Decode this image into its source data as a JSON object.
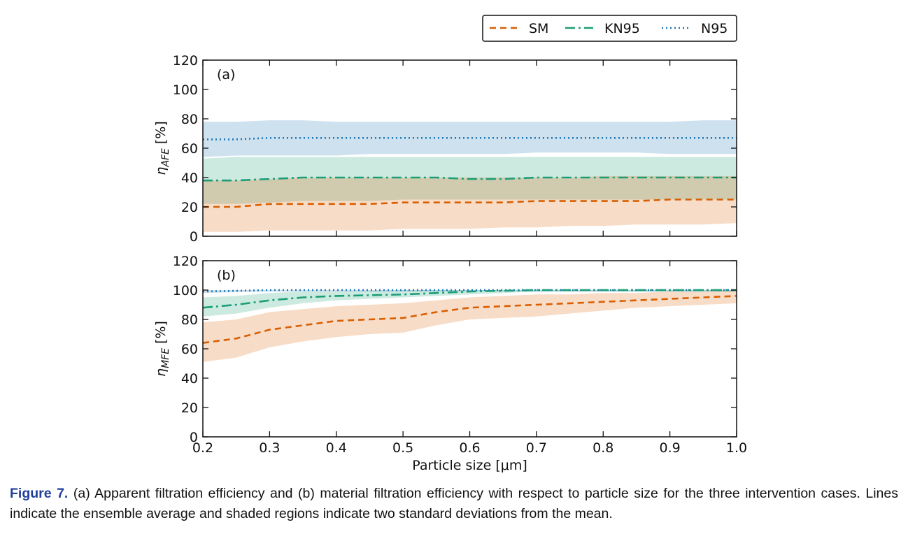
{
  "caption": {
    "label": "Figure 7.",
    "text": "(a) Apparent filtration efficiency and (b) material filtration efficiency with respect to particle size for the three intervention cases. Lines indicate the ensemble average and shaded regions indicate two standard deviations from the mean."
  },
  "colors": {
    "SM": "#d95f02",
    "KN95": "#1b9e77",
    "N95": "#1f77b4"
  },
  "chart_data": [
    {
      "type": "line",
      "panel_label": "(a)",
      "ylabel_symbol": "η",
      "ylabel_sub": "AFE",
      "ylabel_unit": "[%]",
      "xlabel": "",
      "xlim": [
        0.2,
        1.0
      ],
      "ylim": [
        0,
        120
      ],
      "xticks": [
        "0.2",
        "0.3",
        "0.4",
        "0.5",
        "0.6",
        "0.7",
        "0.8",
        "0.9",
        "1.0"
      ],
      "yticks": [
        "0",
        "20",
        "40",
        "60",
        "80",
        "100",
        "120"
      ],
      "x": [
        0.2,
        0.25,
        0.3,
        0.35,
        0.4,
        0.45,
        0.5,
        0.55,
        0.6,
        0.65,
        0.7,
        0.75,
        0.8,
        0.85,
        0.9,
        0.95,
        1.0
      ],
      "series": [
        {
          "name": "N95",
          "style": "dotted",
          "values": [
            66,
            66,
            67,
            67,
            67,
            67,
            67,
            67,
            67,
            67,
            67,
            67,
            67,
            67,
            67,
            67,
            67
          ],
          "upper": [
            78,
            78,
            79,
            79,
            78,
            78,
            78,
            78,
            78,
            78,
            78,
            78,
            78,
            78,
            78,
            79,
            79
          ],
          "lower": [
            54,
            55,
            55,
            55,
            55,
            56,
            56,
            56,
            56,
            56,
            57,
            57,
            57,
            57,
            56,
            56,
            56
          ]
        },
        {
          "name": "KN95",
          "style": "dashdot",
          "values": [
            38,
            38,
            39,
            40,
            40,
            40,
            40,
            40,
            39,
            39,
            40,
            40,
            40,
            40,
            40,
            40,
            40
          ],
          "upper": [
            53,
            54,
            54,
            54,
            54,
            54,
            54,
            54,
            54,
            54,
            54,
            54,
            54,
            54,
            54,
            54,
            54
          ],
          "lower": [
            22,
            22,
            23,
            24,
            24,
            24,
            25,
            25,
            25,
            25,
            25,
            25,
            25,
            25,
            25,
            25,
            25
          ]
        },
        {
          "name": "SM",
          "style": "dashed",
          "values": [
            20,
            20,
            22,
            22,
            22,
            22,
            23,
            23,
            23,
            23,
            24,
            24,
            24,
            24,
            25,
            25,
            25
          ],
          "upper": [
            38,
            38,
            39,
            40,
            40,
            40,
            40,
            40,
            40,
            40,
            40,
            40,
            41,
            41,
            41,
            41,
            41
          ],
          "lower": [
            3,
            3,
            4,
            4,
            4,
            4,
            5,
            5,
            5,
            6,
            6,
            7,
            7,
            8,
            8,
            8,
            9
          ]
        }
      ]
    },
    {
      "type": "line",
      "panel_label": "(b)",
      "ylabel_symbol": "η",
      "ylabel_sub": "MFE",
      "ylabel_unit": "[%]",
      "xlabel": "Particle size [μm]",
      "xlim": [
        0.2,
        1.0
      ],
      "ylim": [
        0,
        120
      ],
      "xticks": [
        "0.2",
        "0.3",
        "0.4",
        "0.5",
        "0.6",
        "0.7",
        "0.8",
        "0.9",
        "1.0"
      ],
      "yticks": [
        "0",
        "20",
        "40",
        "60",
        "80",
        "100",
        "120"
      ],
      "x": [
        0.2,
        0.25,
        0.3,
        0.35,
        0.4,
        0.45,
        0.5,
        0.55,
        0.6,
        0.65,
        0.7,
        0.75,
        0.8,
        0.85,
        0.9,
        0.95,
        1.0
      ],
      "series": [
        {
          "name": "N95",
          "style": "dotted",
          "values": [
            99,
            99.5,
            100,
            100,
            100,
            100,
            100,
            100,
            100,
            100,
            100,
            100,
            100,
            100,
            100,
            100,
            100
          ],
          "upper": [
            100,
            100,
            100,
            100,
            100,
            100,
            100,
            100,
            100,
            100,
            100,
            100,
            100,
            100,
            100,
            100,
            100
          ],
          "lower": [
            98,
            98.5,
            99,
            99,
            99,
            99,
            99,
            99,
            99,
            99,
            99,
            99,
            99,
            99,
            99,
            99,
            99
          ]
        },
        {
          "name": "KN95",
          "style": "dashdot",
          "values": [
            88,
            90,
            93,
            95,
            96,
            96.5,
            97,
            98,
            99,
            99.5,
            100,
            100,
            100,
            100,
            100,
            100,
            100
          ],
          "upper": [
            95,
            96,
            98,
            99,
            99,
            99.5,
            100,
            100,
            100,
            100,
            100,
            100,
            100,
            100,
            100,
            100,
            100
          ],
          "lower": [
            82,
            84,
            88,
            91,
            93,
            94,
            95,
            96,
            97,
            98,
            99,
            99,
            99,
            99,
            99,
            99,
            99
          ]
        },
        {
          "name": "SM",
          "style": "dashed",
          "values": [
            64,
            67,
            73,
            76,
            79,
            80,
            81,
            85,
            88,
            89,
            90,
            91,
            92,
            93,
            94,
            95,
            96
          ],
          "upper": [
            78,
            80,
            85,
            87,
            89,
            90,
            91,
            93,
            95,
            96,
            97,
            97,
            98,
            98,
            99,
            99,
            100
          ],
          "lower": [
            51,
            54,
            61,
            65,
            68,
            70,
            71,
            76,
            80,
            81,
            82,
            84,
            86,
            88,
            89,
            90,
            91
          ]
        }
      ]
    }
  ],
  "legend": {
    "placement": "top-right",
    "entries": [
      "SM",
      "KN95",
      "N95"
    ]
  }
}
